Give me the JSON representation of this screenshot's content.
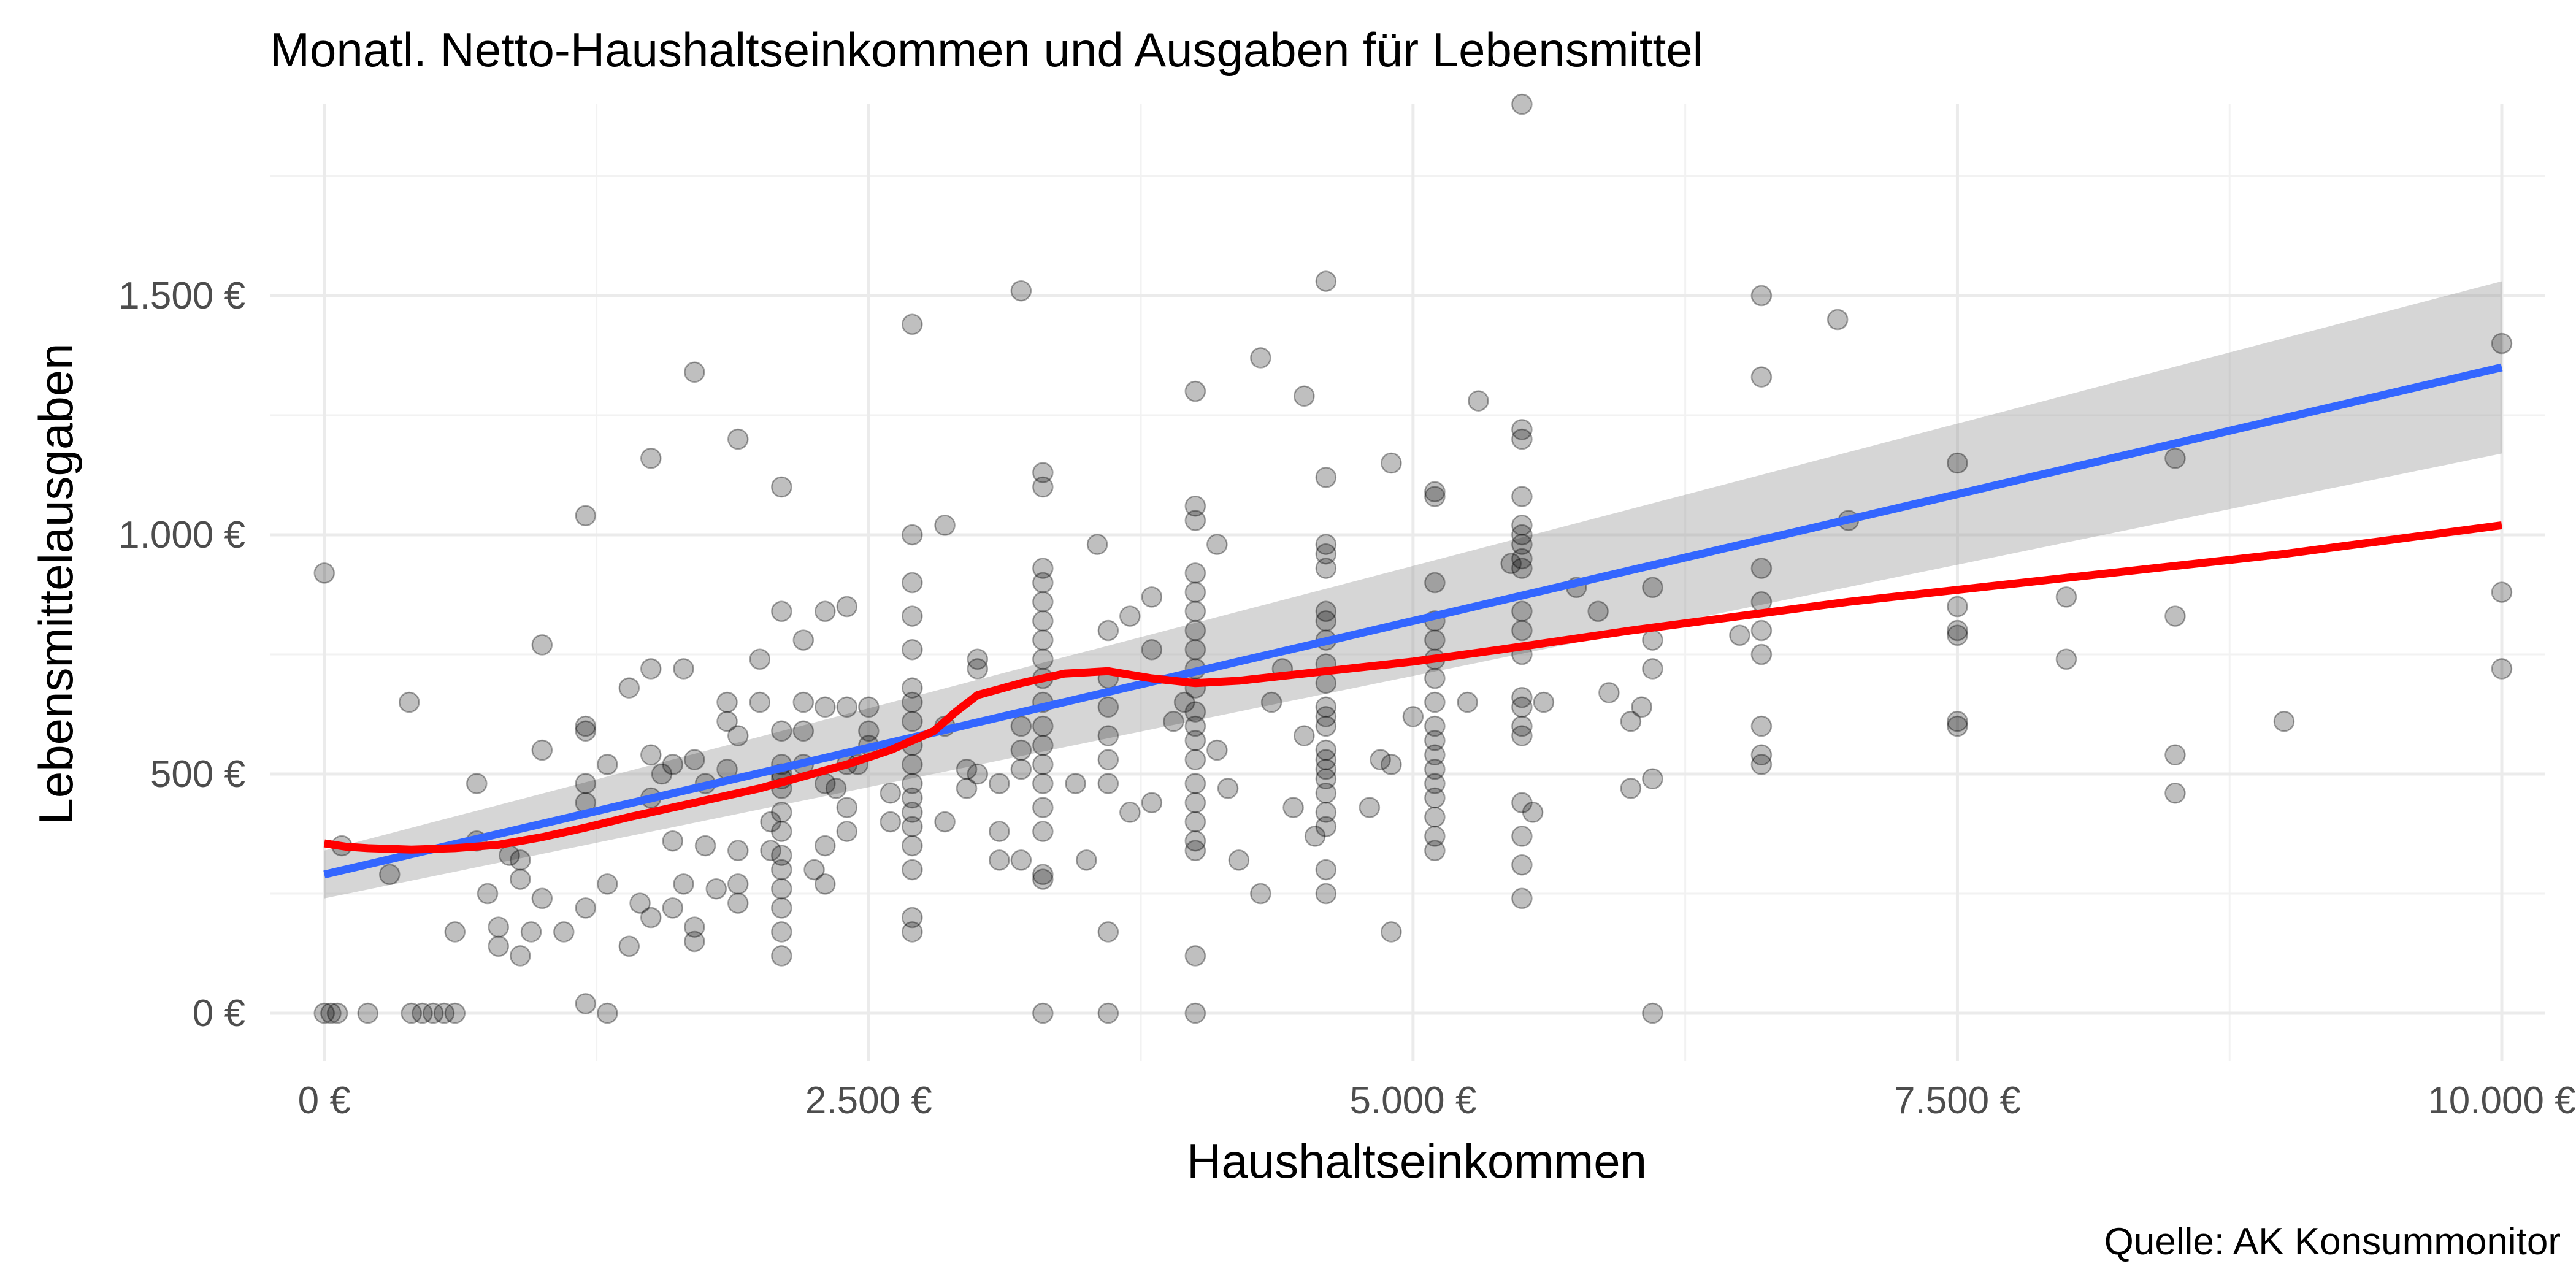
{
  "chart_data": {
    "type": "scatter",
    "title": "Monatl. Netto-Haushaltseinkommen und Ausgaben für Lebensmittel",
    "xlabel": "Haushaltseinkommen",
    "ylabel": "Lebensmittelausgaben",
    "caption": "Quelle: AK Konsummonitor",
    "xlim": [
      -250,
      10200
    ],
    "ylim": [
      -100,
      1900
    ],
    "x_ticks": [
      0,
      2500,
      5000,
      7500,
      10000
    ],
    "x_tick_labels": [
      "0 €",
      "2.500 €",
      "5.000 €",
      "7.500 €",
      "10.000 €"
    ],
    "y_ticks": [
      0,
      500,
      1000,
      1500
    ],
    "y_tick_labels": [
      "0 €",
      "500 €",
      "1.000 €",
      "1.500 €"
    ],
    "grid": true,
    "legend": "none",
    "colors": {
      "points": "#000000",
      "linear_fit": "#3366FF",
      "confidence_band": "#999999",
      "smooth_fit": "#FF0000"
    },
    "points": [
      [
        0,
        920
      ],
      [
        0,
        0
      ],
      [
        30,
        0
      ],
      [
        60,
        0
      ],
      [
        80,
        350
      ],
      [
        200,
        0
      ],
      [
        300,
        290
      ],
      [
        390,
        650
      ],
      [
        400,
        0
      ],
      [
        450,
        0
      ],
      [
        500,
        0
      ],
      [
        550,
        0
      ],
      [
        600,
        170
      ],
      [
        600,
        0
      ],
      [
        700,
        480
      ],
      [
        700,
        360
      ],
      [
        750,
        250
      ],
      [
        800,
        180
      ],
      [
        800,
        140
      ],
      [
        850,
        330
      ],
      [
        900,
        320
      ],
      [
        900,
        280
      ],
      [
        900,
        120
      ],
      [
        950,
        170
      ],
      [
        1000,
        770
      ],
      [
        1000,
        550
      ],
      [
        1000,
        240
      ],
      [
        1100,
        170
      ],
      [
        1200,
        1040
      ],
      [
        1200,
        600
      ],
      [
        1200,
        590
      ],
      [
        1200,
        480
      ],
      [
        1200,
        440
      ],
      [
        1200,
        220
      ],
      [
        1200,
        20
      ],
      [
        1300,
        520
      ],
      [
        1300,
        270
      ],
      [
        1300,
        0
      ],
      [
        1400,
        680
      ],
      [
        1400,
        140
      ],
      [
        1450,
        230
      ],
      [
        1500,
        1160
      ],
      [
        1500,
        720
      ],
      [
        1500,
        540
      ],
      [
        1500,
        450
      ],
      [
        1500,
        200
      ],
      [
        1550,
        500
      ],
      [
        1600,
        360
      ],
      [
        1600,
        520
      ],
      [
        1600,
        220
      ],
      [
        1650,
        720
      ],
      [
        1650,
        270
      ],
      [
        1700,
        1340
      ],
      [
        1700,
        530
      ],
      [
        1700,
        180
      ],
      [
        1700,
        150
      ],
      [
        1750,
        480
      ],
      [
        1750,
        350
      ],
      [
        1800,
        260
      ],
      [
        1850,
        650
      ],
      [
        1850,
        610
      ],
      [
        1850,
        510
      ],
      [
        1900,
        1200
      ],
      [
        1900,
        580
      ],
      [
        1900,
        340
      ],
      [
        1900,
        270
      ],
      [
        1900,
        230
      ],
      [
        2000,
        740
      ],
      [
        2000,
        650
      ],
      [
        2050,
        400
      ],
      [
        2050,
        340
      ],
      [
        2100,
        490
      ],
      [
        2100,
        590
      ],
      [
        2100,
        520
      ],
      [
        2100,
        500
      ],
      [
        2100,
        470
      ],
      [
        2100,
        420
      ],
      [
        2100,
        380
      ],
      [
        2100,
        330
      ],
      [
        2100,
        300
      ],
      [
        2100,
        260
      ],
      [
        2100,
        220
      ],
      [
        2100,
        170
      ],
      [
        2100,
        120
      ],
      [
        2100,
        1100
      ],
      [
        2100,
        840
      ],
      [
        2200,
        780
      ],
      [
        2200,
        650
      ],
      [
        2200,
        590
      ],
      [
        2200,
        520
      ],
      [
        2250,
        300
      ],
      [
        2300,
        840
      ],
      [
        2300,
        640
      ],
      [
        2300,
        480
      ],
      [
        2300,
        350
      ],
      [
        2300,
        270
      ],
      [
        2350,
        470
      ],
      [
        2400,
        850
      ],
      [
        2400,
        640
      ],
      [
        2400,
        520
      ],
      [
        2400,
        430
      ],
      [
        2400,
        380
      ],
      [
        2450,
        520
      ],
      [
        2500,
        640
      ],
      [
        2500,
        590
      ],
      [
        2500,
        560
      ],
      [
        2600,
        460
      ],
      [
        2600,
        400
      ],
      [
        2700,
        1440
      ],
      [
        2700,
        1000
      ],
      [
        2700,
        900
      ],
      [
        2700,
        830
      ],
      [
        2700,
        760
      ],
      [
        2700,
        680
      ],
      [
        2700,
        650
      ],
      [
        2700,
        610
      ],
      [
        2700,
        560
      ],
      [
        2700,
        520
      ],
      [
        2700,
        480
      ],
      [
        2700,
        450
      ],
      [
        2700,
        420
      ],
      [
        2700,
        390
      ],
      [
        2700,
        350
      ],
      [
        2700,
        300
      ],
      [
        2700,
        200
      ],
      [
        2700,
        170
      ],
      [
        2850,
        1020
      ],
      [
        2850,
        600
      ],
      [
        2850,
        400
      ],
      [
        2950,
        510
      ],
      [
        2950,
        470
      ],
      [
        3000,
        740
      ],
      [
        3000,
        720
      ],
      [
        3000,
        500
      ],
      [
        3100,
        480
      ],
      [
        3100,
        380
      ],
      [
        3100,
        320
      ],
      [
        3200,
        1510
      ],
      [
        3200,
        600
      ],
      [
        3200,
        550
      ],
      [
        3200,
        510
      ],
      [
        3200,
        320
      ],
      [
        3300,
        1130
      ],
      [
        3300,
        1100
      ],
      [
        3300,
        930
      ],
      [
        3300,
        900
      ],
      [
        3300,
        860
      ],
      [
        3300,
        820
      ],
      [
        3300,
        780
      ],
      [
        3300,
        740
      ],
      [
        3300,
        700
      ],
      [
        3300,
        650
      ],
      [
        3300,
        600
      ],
      [
        3300,
        560
      ],
      [
        3300,
        520
      ],
      [
        3300,
        480
      ],
      [
        3300,
        430
      ],
      [
        3300,
        380
      ],
      [
        3300,
        290
      ],
      [
        3300,
        280
      ],
      [
        3300,
        0
      ],
      [
        3450,
        480
      ],
      [
        3500,
        320
      ],
      [
        3550,
        980
      ],
      [
        3600,
        800
      ],
      [
        3600,
        700
      ],
      [
        3600,
        640
      ],
      [
        3600,
        580
      ],
      [
        3600,
        530
      ],
      [
        3600,
        480
      ],
      [
        3600,
        170
      ],
      [
        3600,
        0
      ],
      [
        3700,
        830
      ],
      [
        3700,
        420
      ],
      [
        3800,
        870
      ],
      [
        3800,
        760
      ],
      [
        3800,
        440
      ],
      [
        3900,
        610
      ],
      [
        3950,
        650
      ],
      [
        4000,
        1300
      ],
      [
        4000,
        1060
      ],
      [
        4000,
        1030
      ],
      [
        4000,
        920
      ],
      [
        4000,
        880
      ],
      [
        4000,
        840
      ],
      [
        4000,
        800
      ],
      [
        4000,
        760
      ],
      [
        4000,
        720
      ],
      [
        4000,
        680
      ],
      [
        4000,
        630
      ],
      [
        4000,
        600
      ],
      [
        4000,
        570
      ],
      [
        4000,
        530
      ],
      [
        4000,
        480
      ],
      [
        4000,
        440
      ],
      [
        4000,
        400
      ],
      [
        4000,
        360
      ],
      [
        4000,
        340
      ],
      [
        4000,
        120
      ],
      [
        4000,
        0
      ],
      [
        4100,
        980
      ],
      [
        4100,
        550
      ],
      [
        4150,
        470
      ],
      [
        4200,
        320
      ],
      [
        4300,
        1370
      ],
      [
        4300,
        250
      ],
      [
        4350,
        650
      ],
      [
        4400,
        720
      ],
      [
        4450,
        430
      ],
      [
        4500,
        1290
      ],
      [
        4500,
        580
      ],
      [
        4550,
        370
      ],
      [
        4600,
        980
      ],
      [
        4600,
        640
      ],
      [
        4600,
        1530
      ],
      [
        4600,
        1120
      ],
      [
        4600,
        960
      ],
      [
        4600,
        930
      ],
      [
        4600,
        840
      ],
      [
        4600,
        820
      ],
      [
        4600,
        780
      ],
      [
        4600,
        730
      ],
      [
        4600,
        690
      ],
      [
        4600,
        620
      ],
      [
        4600,
        600
      ],
      [
        4600,
        550
      ],
      [
        4600,
        530
      ],
      [
        4600,
        510
      ],
      [
        4600,
        490
      ],
      [
        4600,
        460
      ],
      [
        4600,
        420
      ],
      [
        4600,
        390
      ],
      [
        4600,
        300
      ],
      [
        4600,
        250
      ],
      [
        4800,
        430
      ],
      [
        4850,
        530
      ],
      [
        4900,
        1150
      ],
      [
        4900,
        520
      ],
      [
        4900,
        170
      ],
      [
        5000,
        620
      ],
      [
        5100,
        1090
      ],
      [
        5100,
        1080
      ],
      [
        5100,
        900
      ],
      [
        5100,
        820
      ],
      [
        5100,
        780
      ],
      [
        5100,
        740
      ],
      [
        5100,
        700
      ],
      [
        5100,
        650
      ],
      [
        5100,
        600
      ],
      [
        5100,
        570
      ],
      [
        5100,
        540
      ],
      [
        5100,
        510
      ],
      [
        5100,
        480
      ],
      [
        5100,
        450
      ],
      [
        5100,
        410
      ],
      [
        5100,
        370
      ],
      [
        5100,
        340
      ],
      [
        5250,
        650
      ],
      [
        5300,
        1280
      ],
      [
        5450,
        940
      ],
      [
        5500,
        1900
      ],
      [
        5500,
        1220
      ],
      [
        5500,
        1200
      ],
      [
        5500,
        1080
      ],
      [
        5500,
        1020
      ],
      [
        5500,
        1000
      ],
      [
        5500,
        980
      ],
      [
        5500,
        950
      ],
      [
        5500,
        930
      ],
      [
        5500,
        840
      ],
      [
        5500,
        800
      ],
      [
        5500,
        750
      ],
      [
        5500,
        660
      ],
      [
        5500,
        640
      ],
      [
        5500,
        600
      ],
      [
        5500,
        580
      ],
      [
        5500,
        440
      ],
      [
        5500,
        370
      ],
      [
        5500,
        310
      ],
      [
        5500,
        240
      ],
      [
        5550,
        420
      ],
      [
        5600,
        650
      ],
      [
        5750,
        890
      ],
      [
        5850,
        840
      ],
      [
        5900,
        670
      ],
      [
        6000,
        610
      ],
      [
        6000,
        470
      ],
      [
        6050,
        640
      ],
      [
        6100,
        890
      ],
      [
        6100,
        780
      ],
      [
        6100,
        720
      ],
      [
        6100,
        490
      ],
      [
        6100,
        0
      ],
      [
        6500,
        790
      ],
      [
        6600,
        1500
      ],
      [
        6600,
        1330
      ],
      [
        6600,
        930
      ],
      [
        6600,
        860
      ],
      [
        6600,
        800
      ],
      [
        6600,
        750
      ],
      [
        6600,
        600
      ],
      [
        6600,
        540
      ],
      [
        6600,
        520
      ],
      [
        6950,
        1450
      ],
      [
        7000,
        1030
      ],
      [
        7500,
        1150
      ],
      [
        7500,
        850
      ],
      [
        7500,
        800
      ],
      [
        7500,
        790
      ],
      [
        7500,
        610
      ],
      [
        7500,
        600
      ],
      [
        8000,
        870
      ],
      [
        8000,
        740
      ],
      [
        8500,
        1160
      ],
      [
        8500,
        830
      ],
      [
        8500,
        540
      ],
      [
        8500,
        460
      ],
      [
        9000,
        610
      ],
      [
        10000,
        1400
      ],
      [
        10000,
        880
      ],
      [
        10000,
        720
      ]
    ],
    "linear_fit": {
      "x": [
        0,
        10000
      ],
      "y": [
        290,
        1350
      ],
      "band_lower": [
        240,
        1170
      ],
      "band_upper": [
        340,
        1530
      ]
    },
    "smooth_fit": {
      "x": [
        0,
        100,
        200,
        400,
        600,
        800,
        1000,
        1200,
        1400,
        1600,
        1800,
        2000,
        2200,
        2400,
        2600,
        2800,
        2900,
        3000,
        3200,
        3400,
        3600,
        3800,
        4000,
        4200,
        4400,
        4600,
        4800,
        5000,
        5400,
        6000,
        6500,
        7000,
        7500,
        8000,
        8500,
        9000,
        9500,
        10000
      ],
      "y": [
        355,
        348,
        345,
        342,
        345,
        352,
        368,
        388,
        410,
        430,
        450,
        470,
        495,
        520,
        550,
        590,
        630,
        665,
        690,
        710,
        715,
        700,
        690,
        695,
        705,
        715,
        725,
        735,
        760,
        800,
        830,
        860,
        885,
        910,
        935,
        960,
        990,
        1020
      ]
    }
  }
}
